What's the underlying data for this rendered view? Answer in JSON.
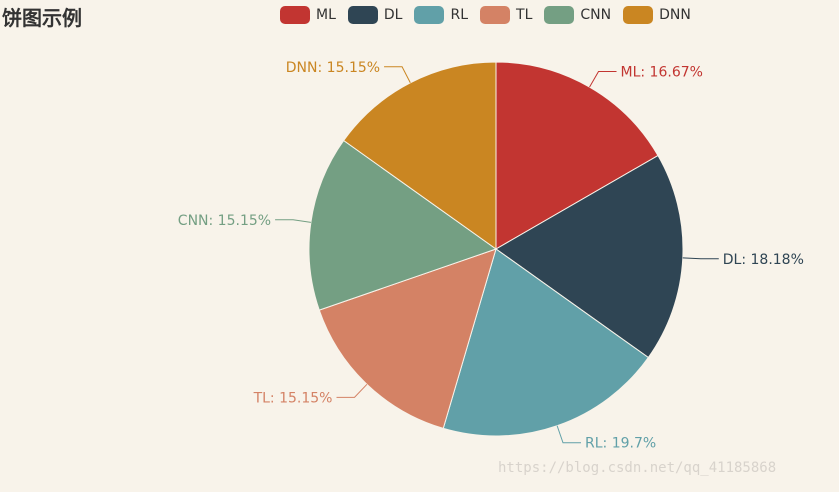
{
  "title": "饼图示例",
  "watermark": "https://blog.csdn.net/qq_41185868",
  "chart_data": {
    "type": "pie",
    "title": "饼图示例",
    "legend_position": "top",
    "slices": [
      {
        "name": "ML",
        "value": 16.67,
        "label": "ML: 16.67%",
        "color": "#c23531"
      },
      {
        "name": "DL",
        "value": 18.18,
        "label": "DL: 18.18%",
        "color": "#2f4554"
      },
      {
        "name": "RL",
        "value": 19.7,
        "label": "RL: 19.7%",
        "color": "#61a0a8"
      },
      {
        "name": "TL",
        "value": 15.15,
        "label": "TL: 15.15%",
        "color": "#d48265"
      },
      {
        "name": "CNN",
        "value": 15.15,
        "label": "CNN: 15.15%",
        "color": "#749f83"
      },
      {
        "name": "DNN",
        "value": 15.15,
        "label": "DNN: 15.15%",
        "color": "#ca8622"
      }
    ]
  }
}
